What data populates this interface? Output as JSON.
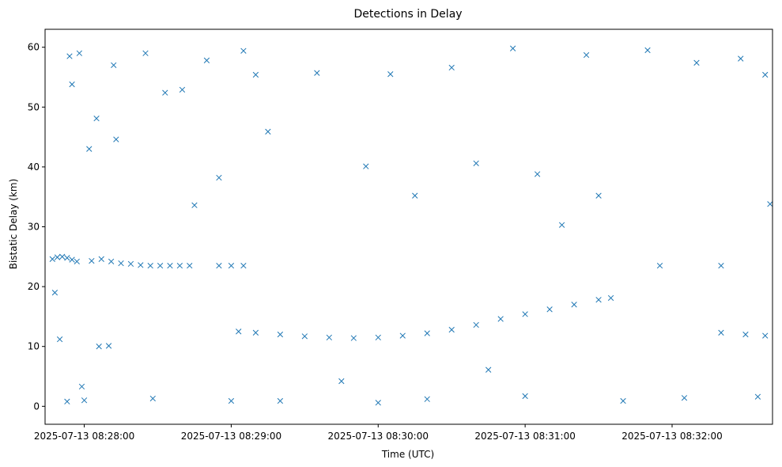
{
  "chart_data": {
    "type": "scatter",
    "title": "Detections in Delay",
    "xlabel": "Time (UTC)",
    "ylabel": "Bistatic Delay (km)",
    "marker": "x",
    "color": "#1f77b4",
    "grid": false,
    "legend": "none",
    "xlim": [
      "2025-07-13 08:27:44",
      "2025-07-13 08:32:41"
    ],
    "ylim": [
      -3.0,
      63.0
    ],
    "x_ticks": [
      "2025-07-13 08:28:00",
      "2025-07-13 08:29:00",
      "2025-07-13 08:30:00",
      "2025-07-13 08:31:00",
      "2025-07-13 08:32:00"
    ],
    "y_ticks": [
      "0",
      "10",
      "20",
      "30",
      "40",
      "50",
      "60"
    ],
    "series": [
      {
        "name": "",
        "description_points": [
          [
            "2025-07-13 08:27:47",
            24.6
          ],
          [
            "2025-07-13 08:27:49",
            24.9
          ],
          [
            "2025-07-13 08:27:51",
            25.0
          ],
          [
            "2025-07-13 08:27:53",
            24.8
          ],
          [
            "2025-07-13 08:27:55",
            24.5
          ],
          [
            "2025-07-13 08:27:57",
            24.2
          ],
          [
            "2025-07-13 08:28:03",
            24.3
          ],
          [
            "2025-07-13 08:28:07",
            24.6
          ],
          [
            "2025-07-13 08:28:11",
            24.2
          ],
          [
            "2025-07-13 08:28:15",
            23.9
          ],
          [
            "2025-07-13 08:28:19",
            23.8
          ],
          [
            "2025-07-13 08:28:23",
            23.6
          ],
          [
            "2025-07-13 08:28:27",
            23.5
          ],
          [
            "2025-07-13 08:28:31",
            23.5
          ],
          [
            "2025-07-13 08:28:35",
            23.5
          ],
          [
            "2025-07-13 08:28:39",
            23.5
          ],
          [
            "2025-07-13 08:28:43",
            23.5
          ],
          [
            "2025-07-13 08:28:55",
            23.5
          ],
          [
            "2025-07-13 08:29:00",
            23.5
          ],
          [
            "2025-07-13 08:29:05",
            23.5
          ],
          [
            "2025-07-13 08:29:03",
            12.5
          ],
          [
            "2025-07-13 08:29:10",
            12.3
          ],
          [
            "2025-07-13 08:29:20",
            12.0
          ],
          [
            "2025-07-13 08:29:30",
            11.7
          ],
          [
            "2025-07-13 08:29:40",
            11.5
          ],
          [
            "2025-07-13 08:29:50",
            11.4
          ],
          [
            "2025-07-13 08:30:00",
            11.5
          ],
          [
            "2025-07-13 08:30:10",
            11.8
          ],
          [
            "2025-07-13 08:30:20",
            12.2
          ],
          [
            "2025-07-13 08:30:30",
            12.8
          ],
          [
            "2025-07-13 08:30:40",
            13.6
          ],
          [
            "2025-07-13 08:30:50",
            14.6
          ],
          [
            "2025-07-13 08:31:00",
            15.4
          ],
          [
            "2025-07-13 08:31:10",
            16.2
          ],
          [
            "2025-07-13 08:31:20",
            17.0
          ],
          [
            "2025-07-13 08:31:30",
            17.8
          ],
          [
            "2025-07-13 08:31:35",
            18.1
          ],
          [
            "2025-07-13 08:32:20",
            12.3
          ],
          [
            "2025-07-13 08:32:30",
            12.0
          ],
          [
            "2025-07-13 08:32:38",
            11.8
          ],
          [
            "2025-07-13 08:27:48",
            19.0
          ],
          [
            "2025-07-13 08:27:50",
            11.2
          ],
          [
            "2025-07-13 08:27:53",
            0.8
          ],
          [
            "2025-07-13 08:27:54",
            58.5
          ],
          [
            "2025-07-13 08:27:55",
            53.8
          ],
          [
            "2025-07-13 08:27:58",
            59.0
          ],
          [
            "2025-07-13 08:27:59",
            3.3
          ],
          [
            "2025-07-13 08:28:00",
            1.0
          ],
          [
            "2025-07-13 08:28:02",
            43.0
          ],
          [
            "2025-07-13 08:28:05",
            48.1
          ],
          [
            "2025-07-13 08:28:06",
            10.0
          ],
          [
            "2025-07-13 08:28:10",
            10.1
          ],
          [
            "2025-07-13 08:28:12",
            57.0
          ],
          [
            "2025-07-13 08:28:13",
            44.6
          ],
          [
            "2025-07-13 08:28:25",
            59.0
          ],
          [
            "2025-07-13 08:28:28",
            1.3
          ],
          [
            "2025-07-13 08:28:33",
            52.4
          ],
          [
            "2025-07-13 08:28:40",
            52.9
          ],
          [
            "2025-07-13 08:28:45",
            33.6
          ],
          [
            "2025-07-13 08:28:50",
            57.8
          ],
          [
            "2025-07-13 08:28:55",
            38.2
          ],
          [
            "2025-07-13 08:29:00",
            0.9
          ],
          [
            "2025-07-13 08:29:05",
            59.4
          ],
          [
            "2025-07-13 08:29:10",
            55.4
          ],
          [
            "2025-07-13 08:29:15",
            45.9
          ],
          [
            "2025-07-13 08:29:20",
            0.9
          ],
          [
            "2025-07-13 08:29:35",
            55.7
          ],
          [
            "2025-07-13 08:29:45",
            4.2
          ],
          [
            "2025-07-13 08:29:55",
            40.1
          ],
          [
            "2025-07-13 08:30:00",
            0.6
          ],
          [
            "2025-07-13 08:30:05",
            55.5
          ],
          [
            "2025-07-13 08:30:15",
            35.2
          ],
          [
            "2025-07-13 08:30:20",
            1.2
          ],
          [
            "2025-07-13 08:30:30",
            56.6
          ],
          [
            "2025-07-13 08:30:40",
            40.6
          ],
          [
            "2025-07-13 08:30:45",
            6.1
          ],
          [
            "2025-07-13 08:30:55",
            59.8
          ],
          [
            "2025-07-13 08:31:00",
            1.7
          ],
          [
            "2025-07-13 08:31:05",
            38.8
          ],
          [
            "2025-07-13 08:31:15",
            30.3
          ],
          [
            "2025-07-13 08:31:25",
            58.7
          ],
          [
            "2025-07-13 08:31:30",
            35.2
          ],
          [
            "2025-07-13 08:31:40",
            0.9
          ],
          [
            "2025-07-13 08:31:50",
            59.5
          ],
          [
            "2025-07-13 08:31:55",
            23.5
          ],
          [
            "2025-07-13 08:32:05",
            1.4
          ],
          [
            "2025-07-13 08:32:10",
            57.4
          ],
          [
            "2025-07-13 08:32:20",
            23.5
          ],
          [
            "2025-07-13 08:32:28",
            58.1
          ],
          [
            "2025-07-13 08:32:35",
            1.6
          ],
          [
            "2025-07-13 08:32:38",
            55.4
          ],
          [
            "2025-07-13 08:32:40",
            33.8
          ]
        ]
      }
    ]
  }
}
